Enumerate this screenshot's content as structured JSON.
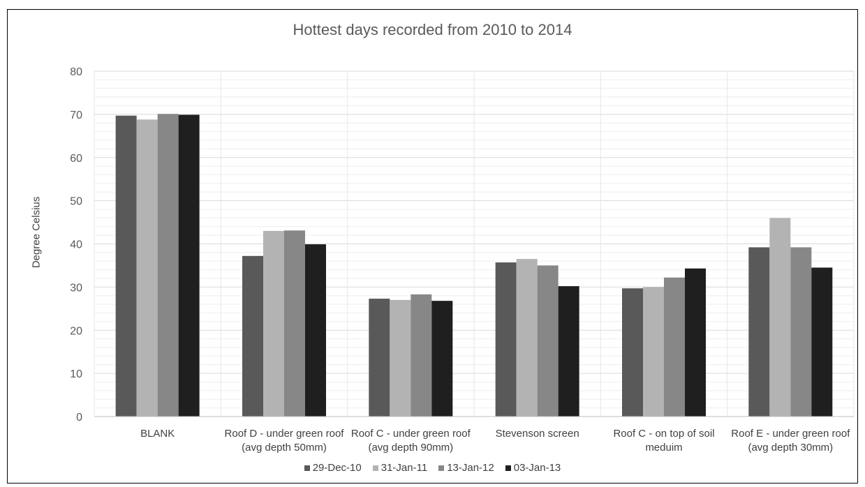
{
  "chart_data": {
    "type": "bar",
    "title": "Hottest days recorded from 2010 to 2014",
    "xlabel": "",
    "ylabel": "Degree Celsius",
    "ylim": [
      0,
      80
    ],
    "yticks": [
      0,
      10,
      20,
      30,
      40,
      50,
      60,
      70,
      80
    ],
    "ytick_labels": [
      "0",
      "10",
      "20",
      "30",
      "40",
      "50",
      "60",
      "70",
      "80"
    ],
    "grid": true,
    "legend_position": "bottom",
    "categories": [
      [
        "BLANK"
      ],
      [
        "Roof D - under green roof",
        "(avg depth 50mm)"
      ],
      [
        "Roof C - under green roof",
        "(avg depth 90mm)"
      ],
      [
        "Stevenson screen"
      ],
      [
        "Roof C - on top of soil",
        "meduim"
      ],
      [
        "Roof E - under green roof",
        "(avg depth 30mm)"
      ]
    ],
    "series": [
      {
        "name": "29-Dec-10",
        "color": "#595959",
        "values": [
          69.7,
          37.2,
          27.3,
          35.7,
          29.7,
          39.2
        ]
      },
      {
        "name": "31-Jan-11",
        "color": "#b3b3b3",
        "values": [
          68.8,
          43.0,
          27.0,
          36.5,
          30.0,
          46.0
        ]
      },
      {
        "name": "13-Jan-12",
        "color": "#878787",
        "values": [
          70.1,
          43.1,
          28.3,
          35.0,
          32.2,
          39.2
        ]
      },
      {
        "name": "03-Jan-13",
        "color": "#1f1f1f",
        "values": [
          69.9,
          39.9,
          26.8,
          30.2,
          34.3,
          34.5
        ]
      }
    ]
  }
}
